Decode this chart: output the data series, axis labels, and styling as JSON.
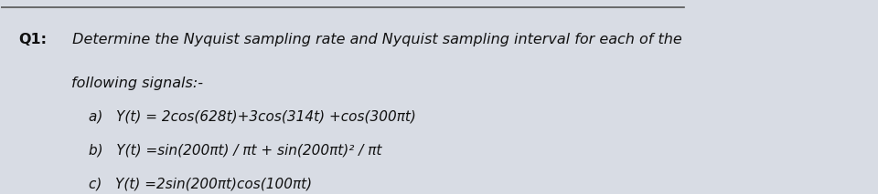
{
  "bg_color": "#d8dce4",
  "line_color": "#555555",
  "text_color": "#111111",
  "title_bold": "Q1:",
  "title_normal": " Determine the Nyquist sampling rate and Nyquist sampling interval for each of the",
  "subtitle": "following signals:-",
  "item_a": "a)   Y(t) = 2cos(628t)+3cos(314t) +cos(300πt)",
  "item_b": "b)   Y(t) =sin(200πt) / πt + sin(200πt)² / πt",
  "item_c": "c)   Y(t) =2sin(200πt)cos(100πt)",
  "font_size_main": 11.5,
  "font_size_items": 11.0
}
